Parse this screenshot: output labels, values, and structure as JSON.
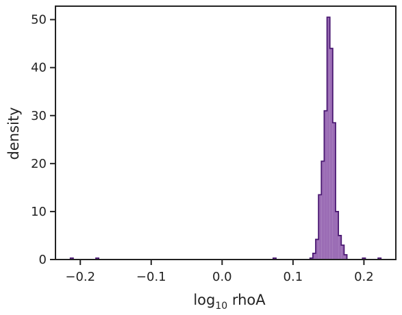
{
  "chart_data": {
    "type": "histogram",
    "xlabel": {
      "base": "log",
      "sub": "10",
      "rest": " rhoA"
    },
    "ylabel": "density",
    "xlim": [
      -0.235,
      0.245
    ],
    "ylim": [
      0,
      52.8
    ],
    "x_ticks": [
      {
        "value": -0.2,
        "label": "−0.2"
      },
      {
        "value": -0.1,
        "label": "−0.1"
      },
      {
        "value": 0.0,
        "label": "0.0"
      },
      {
        "value": 0.1,
        "label": "0.1"
      },
      {
        "value": 0.2,
        "label": "0.2"
      }
    ],
    "y_ticks": [
      {
        "value": 0,
        "label": "0"
      },
      {
        "value": 10,
        "label": "10"
      },
      {
        "value": 20,
        "label": "20"
      },
      {
        "value": 30,
        "label": "30"
      },
      {
        "value": 40,
        "label": "40"
      },
      {
        "value": 50,
        "label": "50"
      }
    ],
    "bin_width": 0.004,
    "bins": [
      {
        "x0": -0.214,
        "y": 0.3
      },
      {
        "x0": -0.21,
        "y": 0
      },
      {
        "x0": -0.178,
        "y": 0.3
      },
      {
        "x0": -0.174,
        "y": 0
      },
      {
        "x0": 0.072,
        "y": 0.3
      },
      {
        "x0": 0.076,
        "y": 0
      },
      {
        "x0": 0.124,
        "y": 0.3
      },
      {
        "x0": 0.128,
        "y": 1.3
      },
      {
        "x0": 0.132,
        "y": 4.2
      },
      {
        "x0": 0.136,
        "y": 13.5
      },
      {
        "x0": 0.14,
        "y": 20.5
      },
      {
        "x0": 0.144,
        "y": 31.0
      },
      {
        "x0": 0.148,
        "y": 50.5
      },
      {
        "x0": 0.152,
        "y": 44.0
      },
      {
        "x0": 0.156,
        "y": 28.5
      },
      {
        "x0": 0.16,
        "y": 10.0
      },
      {
        "x0": 0.164,
        "y": 5.0
      },
      {
        "x0": 0.168,
        "y": 3.0
      },
      {
        "x0": 0.172,
        "y": 1.0
      },
      {
        "x0": 0.176,
        "y": 0
      },
      {
        "x0": 0.198,
        "y": 0.3
      },
      {
        "x0": 0.202,
        "y": 0
      },
      {
        "x0": 0.22,
        "y": 0.3
      },
      {
        "x0": 0.224,
        "y": 0
      }
    ],
    "fill_color": "#9b6db5",
    "line_color": "#4a1872",
    "axis_color": "#222222",
    "grid": false,
    "legend": "none"
  }
}
